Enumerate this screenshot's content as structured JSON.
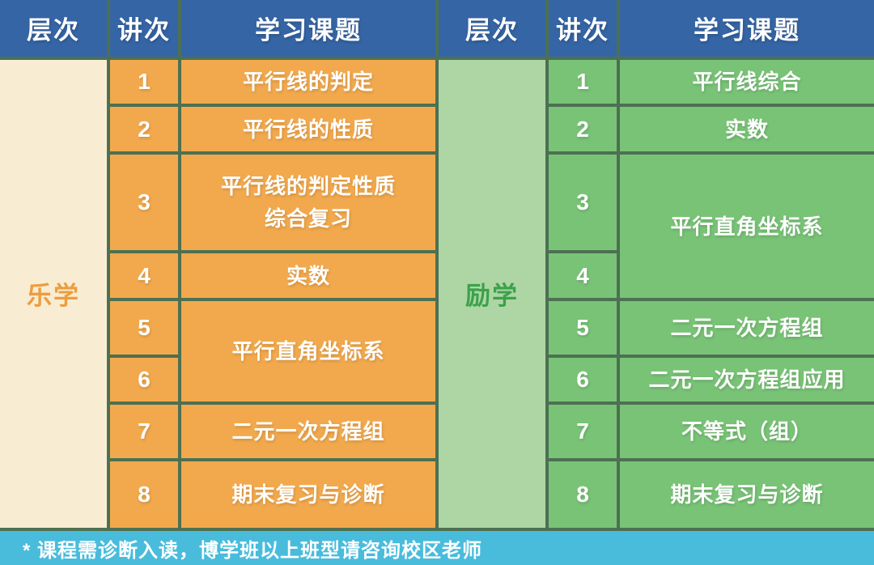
{
  "colors": {
    "header_bg": "#3565a5",
    "grid_border": "#4d7052",
    "left_level_bg": "#f8edd2",
    "left_level_text": "#ed9d3f",
    "left_cell_bg": "#f2a94d",
    "right_level_bg": "#aed6a5",
    "right_level_text": "#3ba24a",
    "right_cell_bg": "#79c377",
    "footer_bg": "#49bcdc",
    "cell_text": "#ffffff"
  },
  "columns": {
    "level": "层次",
    "lecture": "讲次",
    "topic": "学习课题"
  },
  "left_table": {
    "level": "乐学",
    "rows": [
      {
        "num": "1",
        "topic": "平行线的判定"
      },
      {
        "num": "2",
        "topic": "平行线的性质"
      },
      {
        "num": "3",
        "topic": "平行线的判定性质\n综合复习"
      },
      {
        "num": "4",
        "topic": "实数"
      },
      {
        "num": "5",
        "topic": "平行直角坐标系"
      },
      {
        "num": "6"
      },
      {
        "num": "7",
        "topic": "二元一次方程组"
      },
      {
        "num": "8",
        "topic": "期末复习与诊断"
      }
    ]
  },
  "right_table": {
    "level": "励学",
    "rows": [
      {
        "num": "1",
        "topic": "平行线综合"
      },
      {
        "num": "2",
        "topic": "实数"
      },
      {
        "num": "3",
        "topic": "平行直角坐标系"
      },
      {
        "num": "4"
      },
      {
        "num": "5",
        "topic": "二元一次方程组"
      },
      {
        "num": "6",
        "topic": "二元一次方程组应用"
      },
      {
        "num": "7",
        "topic": "不等式（组）"
      },
      {
        "num": "8",
        "topic": "期末复习与诊断"
      }
    ]
  },
  "footer": {
    "note": "* 课程需诊断入读，博学班以上班型请咨询校区老师"
  }
}
